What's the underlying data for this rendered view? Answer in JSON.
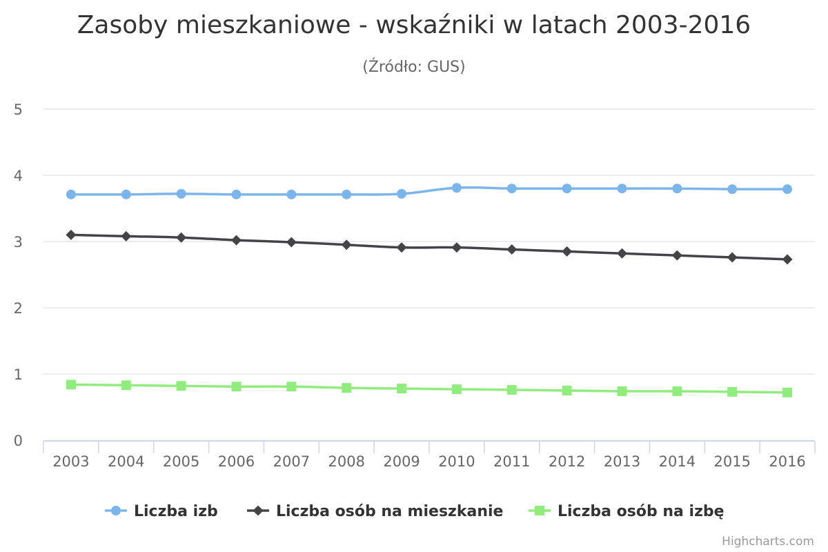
{
  "chart_data": {
    "type": "line",
    "title": "Zasoby mieszkaniowe - wskaźniki w latach 2003-2016",
    "subtitle": "(Źródło: GUS)",
    "categories": [
      "2003",
      "2004",
      "2005",
      "2006",
      "2007",
      "2008",
      "2009",
      "2010",
      "2011",
      "2012",
      "2013",
      "2014",
      "2015",
      "2016"
    ],
    "ylim": [
      0,
      5
    ],
    "yticks": [
      "0",
      "1",
      "2",
      "3",
      "4",
      "5"
    ],
    "grid": true,
    "legend_position": "bottom",
    "series": [
      {
        "name": "Liczba izb",
        "color": "#7cb5ec",
        "marker": "circle",
        "values": [
          3.71,
          3.71,
          3.72,
          3.71,
          3.71,
          3.71,
          3.72,
          3.81,
          3.8,
          3.8,
          3.8,
          3.8,
          3.79,
          3.79
        ]
      },
      {
        "name": "Liczba osób na mieszkanie",
        "color": "#434348",
        "marker": "diamond",
        "values": [
          3.1,
          3.08,
          3.06,
          3.02,
          2.99,
          2.95,
          2.91,
          2.91,
          2.88,
          2.85,
          2.82,
          2.79,
          2.76,
          2.73
        ]
      },
      {
        "name": "Liczba osób na izbę",
        "color": "#90ed7d",
        "marker": "square",
        "values": [
          0.84,
          0.83,
          0.82,
          0.81,
          0.81,
          0.79,
          0.78,
          0.77,
          0.76,
          0.75,
          0.74,
          0.74,
          0.73,
          0.72
        ]
      }
    ]
  },
  "credits": "Highcharts.com"
}
